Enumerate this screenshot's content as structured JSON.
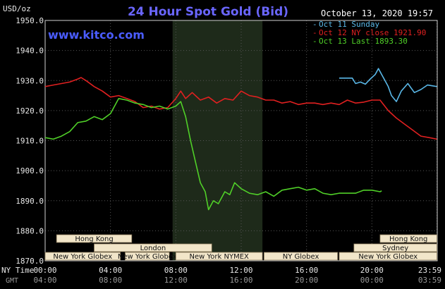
{
  "chart_data": {
    "type": "line",
    "title": "24 Hour Spot Gold (Bid)",
    "watermark": "www.kitco.com",
    "unit_label": "USD/oz",
    "timestamp": "October 13, 2020 19:57",
    "ylim": [
      1870,
      1950
    ],
    "xlim_hours": [
      0,
      24
    ],
    "y_ticks": [
      "1950.0",
      "1940.0",
      "1930.0",
      "1920.0",
      "1910.0",
      "1900.0",
      "1890.0",
      "1880.0",
      "1870.0"
    ],
    "y_tick_values": [
      1950,
      1940,
      1930,
      1920,
      1910,
      1900,
      1890,
      1880,
      1870
    ],
    "x_ticks": {
      "row1_label": "NY Time",
      "row2_label": "GMT",
      "positions_hours": [
        0,
        4,
        8,
        12,
        16,
        20,
        23.98
      ],
      "ny_time": [
        "00:00",
        "04:00",
        "08:00",
        "12:00",
        "16:00",
        "20:00",
        "23:59"
      ],
      "gmt": [
        "04:00",
        "08:00",
        "12:00",
        "16:00",
        "20:00",
        "00:00",
        "03:59"
      ]
    },
    "highlight_hours": [
      7.8,
      13.3
    ],
    "series": [
      {
        "name": "Oct 11 Sunday",
        "color": "#5ab8e8",
        "x": [
          18.0,
          18.8,
          19.0,
          19.3,
          19.6,
          19.9,
          20.2,
          20.4,
          20.6,
          20.8,
          21.0,
          21.2,
          21.5,
          21.8,
          22.2,
          22.6,
          23.0,
          23.4,
          23.98
        ],
        "y": [
          1930.8,
          1930.8,
          1929.0,
          1929.5,
          1928.8,
          1930.5,
          1932.0,
          1934.0,
          1932.0,
          1930.0,
          1928.0,
          1925.0,
          1923.0,
          1926.5,
          1929.0,
          1926.0,
          1927.0,
          1928.5,
          1928.0
        ]
      },
      {
        "name": "Oct 12 NY close 1921.90",
        "color": "#e02020",
        "x": [
          0,
          0.5,
          1.0,
          1.5,
          2.0,
          2.2,
          2.5,
          3.0,
          3.5,
          4.0,
          4.5,
          5.0,
          5.5,
          6.0,
          6.5,
          7.0,
          7.5,
          8.0,
          8.3,
          8.6,
          9.0,
          9.5,
          10.0,
          10.5,
          11.0,
          11.5,
          12.0,
          12.5,
          13.0,
          13.5,
          14.0,
          14.5,
          15.0,
          15.5,
          16.0,
          16.5,
          17.0,
          17.5,
          18.0,
          18.5,
          19.0,
          19.5,
          20.0,
          20.5,
          21.0,
          21.5,
          22.0,
          22.5,
          23.0,
          23.5,
          23.98
        ],
        "y": [
          1928,
          1928.5,
          1929,
          1929.5,
          1930.5,
          1931,
          1930,
          1928,
          1926.5,
          1924.5,
          1925,
          1924,
          1923,
          1921,
          1921.5,
          1920.5,
          1921,
          1924,
          1926.5,
          1924,
          1926,
          1923.5,
          1924.5,
          1922.5,
          1924,
          1923.5,
          1926.5,
          1925,
          1924.5,
          1923.5,
          1923.5,
          1922.5,
          1923,
          1922,
          1922.5,
          1922.5,
          1922,
          1922.5,
          1922,
          1923.5,
          1922.5,
          1922.8,
          1923.5,
          1923.5,
          1920,
          1917.5,
          1915.5,
          1913.5,
          1911.5,
          1911,
          1910.5
        ]
      },
      {
        "name": "Oct 13 Last 1893.30",
        "color": "#50d028",
        "x": [
          0,
          0.5,
          1.0,
          1.5,
          2.0,
          2.5,
          3.0,
          3.5,
          4.0,
          4.5,
          5.0,
          5.5,
          6.0,
          6.5,
          7.0,
          7.5,
          8.0,
          8.3,
          8.6,
          8.9,
          9.2,
          9.5,
          9.8,
          10.0,
          10.3,
          10.6,
          11.0,
          11.3,
          11.6,
          12.0,
          12.5,
          13.0,
          13.5,
          14.0,
          14.5,
          15.0,
          15.5,
          16.0,
          16.5,
          17.0,
          17.5,
          18.0,
          18.5,
          19.0,
          19.5,
          20.0,
          20.5,
          20.6
        ],
        "y": [
          1911,
          1910.5,
          1911.5,
          1913,
          1916,
          1916.5,
          1918,
          1917,
          1919,
          1924,
          1923.5,
          1922.5,
          1922,
          1921,
          1921.5,
          1920.5,
          1921.5,
          1923,
          1918,
          1910,
          1903,
          1896,
          1893,
          1887,
          1890,
          1889,
          1893,
          1892,
          1896,
          1894,
          1892.5,
          1892,
          1893,
          1891.5,
          1893.5,
          1894,
          1894.5,
          1893.5,
          1894,
          1892.5,
          1892,
          1892.5,
          1892.5,
          1892.5,
          1893.5,
          1893.5,
          1893,
          1893.3
        ]
      }
    ],
    "sessions": [
      {
        "label": "Hong Kong",
        "start": 0.7,
        "end": 5.3,
        "row": 1
      },
      {
        "label": "New York Globex",
        "start": 0.0,
        "end": 4.6,
        "row": 0
      },
      {
        "label": "London",
        "start": 3.0,
        "end": 10.2,
        "row": 2
      },
      {
        "label": "New York Globex",
        "start": 4.9,
        "end": 7.6,
        "row": 0
      },
      {
        "label": "New York NYMEX",
        "start": 8.0,
        "end": 13.3,
        "row": 0
      },
      {
        "label": "NY Globex",
        "start": 13.4,
        "end": 17.9,
        "row": 0
      },
      {
        "label": "Hong Kong",
        "start": 20.5,
        "end": 23.98,
        "row": 1
      },
      {
        "label": "Sydney",
        "start": 18.9,
        "end": 23.98,
        "row": 2
      },
      {
        "label": "New York Globex",
        "start": 18.0,
        "end": 23.98,
        "row": 3
      }
    ]
  }
}
